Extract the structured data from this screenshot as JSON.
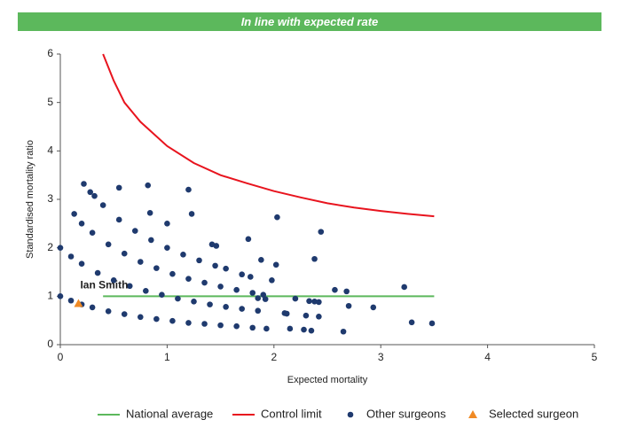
{
  "chart_data": {
    "type": "scatter",
    "title": "In line with expected rate",
    "xlabel": "Expected mortality",
    "ylabel": "Standardised mortality ratio",
    "xlim": [
      0,
      5
    ],
    "ylim": [
      0,
      6
    ],
    "xticks": [
      0,
      1,
      2,
      3,
      4,
      5
    ],
    "yticks": [
      0,
      1,
      2,
      3,
      4,
      5,
      6
    ],
    "grid": false,
    "legend": "bottom",
    "series": [
      {
        "name": "National average",
        "color": "#5cb85c",
        "style": "line",
        "x": [
          0.4,
          3.5
        ],
        "y": [
          1,
          1
        ]
      },
      {
        "name": "Control limit",
        "color": "#e8141e",
        "style": "line",
        "x": [
          0.4,
          0.5,
          0.6,
          0.75,
          1.0,
          1.25,
          1.5,
          1.75,
          2.0,
          2.25,
          2.5,
          2.75,
          3.0,
          3.25,
          3.5
        ],
        "y": [
          6,
          5.45,
          5.0,
          4.6,
          4.1,
          3.75,
          3.5,
          3.33,
          3.17,
          3.04,
          2.92,
          2.83,
          2.76,
          2.7,
          2.65
        ]
      },
      {
        "name": "Other surgeons",
        "color": "#1f3a6e",
        "style": "dot",
        "x": [
          0,
          0.1,
          0.2,
          0.3,
          0.45,
          0.6,
          0.75,
          0.9,
          1.05,
          1.2,
          1.35,
          1.5,
          1.65,
          0,
          0.1,
          0.2,
          0.35,
          0.5,
          0.65,
          0.8,
          0.95,
          1.1,
          1.25,
          1.4,
          1.55,
          1.7,
          1.85,
          0.2,
          0.3,
          0.45,
          0.6,
          0.75,
          0.9,
          1.05,
          1.2,
          1.35,
          1.5,
          1.65,
          1.8,
          1.9,
          0.55,
          0.7,
          0.85,
          1.0,
          1.15,
          1.3,
          1.45,
          1.55,
          0.13,
          0.22,
          0.28,
          0.32,
          0.4,
          0.55,
          0.82,
          0.84,
          1.0,
          1.2,
          1.23,
          1.42,
          1.46,
          1.76,
          1.88,
          2.03,
          2.02,
          2.2,
          2.38,
          2.44,
          2.57,
          2.68,
          2.7,
          2.93,
          3.22,
          3.29,
          3.48,
          2.1,
          2.12,
          2.3,
          2.42,
          2.33,
          2.38,
          2.42,
          2.15,
          2.28,
          2.35,
          2.65,
          1.93,
          1.8,
          1.7,
          1.78,
          1.85,
          1.92,
          1.98
        ],
        "y": [
          1,
          0.91,
          0.83,
          0.77,
          0.69,
          0.63,
          0.57,
          0.53,
          0.49,
          0.45,
          0.43,
          0.4,
          0.38,
          2,
          1.82,
          1.67,
          1.48,
          1.33,
          1.21,
          1.11,
          1.03,
          0.95,
          0.89,
          0.83,
          0.78,
          0.74,
          0.7,
          2.5,
          2.31,
          2.07,
          1.88,
          1.71,
          1.58,
          1.46,
          1.36,
          1.28,
          1.2,
          1.13,
          1.07,
          1.03,
          2.58,
          2.35,
          2.16,
          2.0,
          1.86,
          1.74,
          1.63,
          1.57,
          2.7,
          3.32,
          3.15,
          3.07,
          2.88,
          3.24,
          3.29,
          2.72,
          2.5,
          3.2,
          2.7,
          2.07,
          2.04,
          2.18,
          1.75,
          2.63,
          1.65,
          0.95,
          1.77,
          2.33,
          1.13,
          1.1,
          0.8,
          0.77,
          1.19,
          0.46,
          0.44,
          0.65,
          0.64,
          0.6,
          0.58,
          0.9,
          0.89,
          0.88,
          0.33,
          0.31,
          0.29,
          0.27,
          0.33,
          0.35,
          1.45,
          1.4,
          0.96,
          0.94,
          1.33
        ]
      },
      {
        "name": "Selected surgeon",
        "color": "#f08a24",
        "style": "triangle",
        "label": "Ian Smith",
        "x": [
          0.17
        ],
        "y": [
          0.85
        ]
      }
    ]
  }
}
